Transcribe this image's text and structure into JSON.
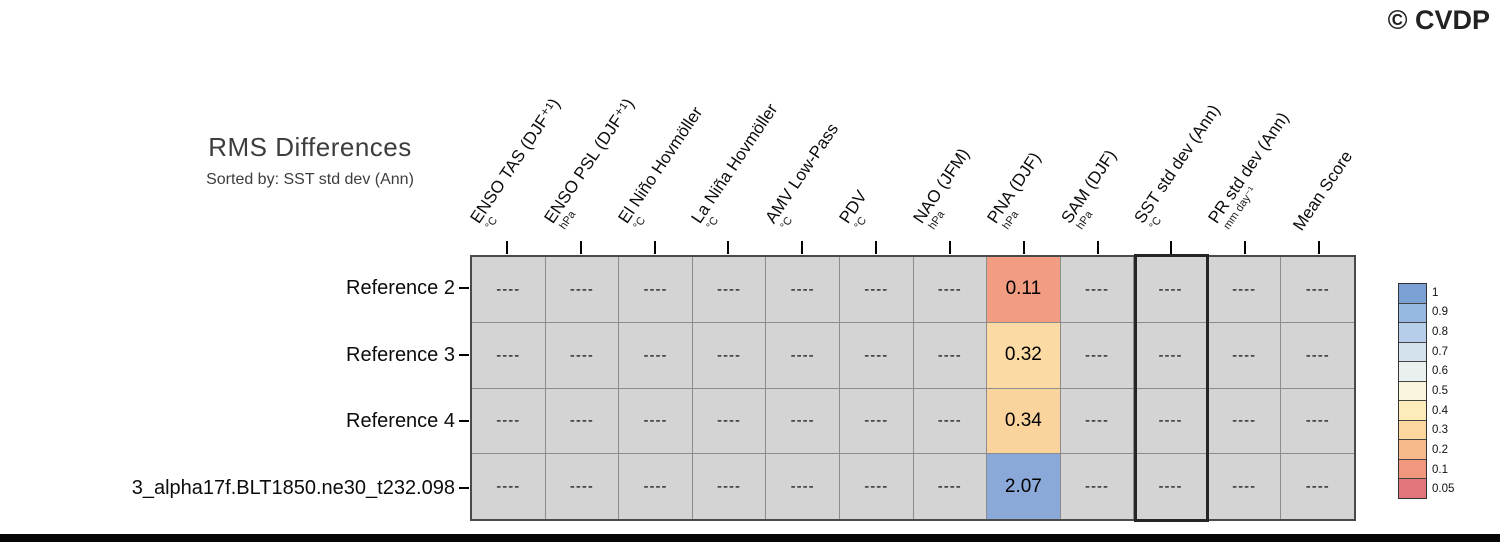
{
  "branding": {
    "logo_text": "© CVDP"
  },
  "chart_data": {
    "type": "heatmap",
    "title": "RMS Differences",
    "subtitle": "Sorted by: SST std dev (Ann)",
    "legend_position": "right",
    "columns": [
      {
        "label": "ENSO TAS (DJF⁺¹)",
        "unit": "°C"
      },
      {
        "label": "ENSO PSL (DJF⁺¹)",
        "unit": "hPa"
      },
      {
        "label": "El Niño Hovmöller",
        "unit": "°C"
      },
      {
        "label": "La Niña Hovmöller",
        "unit": "°C"
      },
      {
        "label": "AMV Low-Pass",
        "unit": "°C"
      },
      {
        "label": "PDV",
        "unit": "°C"
      },
      {
        "label": "NAO (JFM)",
        "unit": "hPa"
      },
      {
        "label": "PNA (DJF)",
        "unit": "hPa"
      },
      {
        "label": "SAM (DJF)",
        "unit": "hPa"
      },
      {
        "label": "SST std dev (Ann)",
        "unit": "°C"
      },
      {
        "label": "PR std dev (Ann)",
        "unit": "mm day⁻¹"
      },
      {
        "label": "Mean Score",
        "unit": ""
      }
    ],
    "rows": [
      {
        "label": "Reference 2",
        "values": [
          "----",
          "----",
          "----",
          "----",
          "----",
          "----",
          "----",
          "0.11",
          "----",
          "----",
          "----",
          "----"
        ]
      },
      {
        "label": "Reference 3",
        "values": [
          "----",
          "----",
          "----",
          "----",
          "----",
          "----",
          "----",
          "0.32",
          "----",
          "----",
          "----",
          "----"
        ]
      },
      {
        "label": "Reference 4",
        "values": [
          "----",
          "----",
          "----",
          "----",
          "----",
          "----",
          "----",
          "0.34",
          "----",
          "----",
          "----",
          "----"
        ]
      },
      {
        "label": "3_alpha17f.BLT1850.ne30_t232.098",
        "values": [
          "----",
          "----",
          "----",
          "----",
          "----",
          "----",
          "----",
          "2.07",
          "----",
          "----",
          "----",
          "----"
        ]
      }
    ],
    "empty_value": "----",
    "default_cell_color": "#d4d4d4",
    "value_cell_colors": [
      {
        "row": 0,
        "col": 7,
        "value": "0.11",
        "color": "#f29c82"
      },
      {
        "row": 1,
        "col": 7,
        "value": "0.32",
        "color": "#fbdaa4"
      },
      {
        "row": 2,
        "col": 7,
        "value": "0.34",
        "color": "#fad49c"
      },
      {
        "row": 3,
        "col": 7,
        "value": "2.07",
        "color": "#8aa8d8"
      }
    ],
    "sort_column": "SST std dev (Ann)",
    "sort_column_index": 9,
    "colorbar": {
      "tick_labels": [
        "1",
        "0.9",
        "0.8",
        "0.7",
        "0.6",
        "0.5",
        "0.4",
        "0.3",
        "0.2",
        "0.1",
        "0.05"
      ],
      "segment_colors": [
        "#7aa0d4",
        "#97b9e1",
        "#b6cee9",
        "#d4e2ee",
        "#eaf0ee",
        "#f9f6dd",
        "#fdecb9",
        "#fcd79e",
        "#f9ba8b",
        "#f0977d",
        "#e0757b"
      ]
    }
  }
}
